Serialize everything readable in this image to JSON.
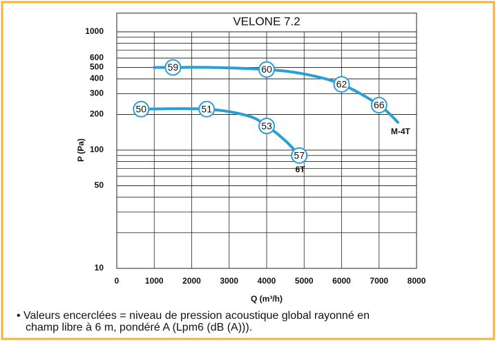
{
  "chart_data": {
    "type": "line",
    "title": "VELONE 7.2",
    "xlabel": "Q (m³/h)",
    "ylabel": "P (Pa)",
    "xlim": [
      0,
      8000
    ],
    "xticks": [
      0,
      1000,
      2000,
      3000,
      4000,
      5000,
      6000,
      7000,
      8000
    ],
    "ylim": [
      10,
      1000
    ],
    "yscale": "log",
    "yticks": [
      10,
      50,
      100,
      200,
      300,
      400,
      500,
      600,
      1000
    ],
    "grid": true,
    "series": [
      {
        "name": "M-4T",
        "color": "#2a9fd6",
        "x": [
          1000,
          1500,
          2500,
          4000,
          5000,
          6000,
          7000,
          7500
        ],
        "values": [
          500,
          500,
          500,
          480,
          440,
          360,
          240,
          172
        ],
        "labels": [
          null,
          59,
          null,
          60,
          null,
          62,
          66,
          null
        ]
      },
      {
        "name": "6T",
        "color": "#2a9fd6",
        "x": [
          650,
          2400,
          3500,
          4000,
          4500,
          4870,
          4950
        ],
        "values": [
          222,
          222,
          195,
          160,
          120,
          90,
          82
        ],
        "labels": [
          50,
          51,
          null,
          53,
          null,
          57,
          null
        ]
      }
    ],
    "note": [
      "• Valeurs encerclées = niveau de pression acoustique global rayonné en",
      "champ libre à 6 m, pondéré A (Lpm6 (dB (A)))."
    ]
  }
}
